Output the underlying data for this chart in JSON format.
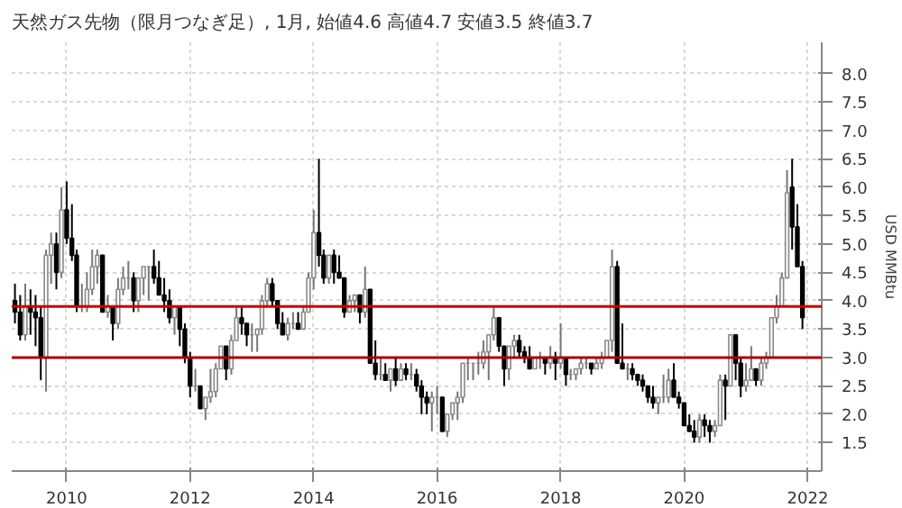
{
  "chart_data": {
    "type": "candlestick",
    "subtitle": "天然ガス先物（限月つなぎ足）, 1月, 始値4.6 高値4.7 安値3.5 終値3.7",
    "ylabel": "USD MMBtu",
    "x": [
      "2009-03",
      "2009-04",
      "2009-05",
      "2009-06",
      "2009-07",
      "2009-08",
      "2009-09",
      "2009-10",
      "2009-11",
      "2009-12",
      "2010-01",
      "2010-02",
      "2010-03",
      "2010-04",
      "2010-05",
      "2010-06",
      "2010-07",
      "2010-08",
      "2010-09",
      "2010-10",
      "2010-11",
      "2010-12",
      "2011-01",
      "2011-02",
      "2011-03",
      "2011-04",
      "2011-05",
      "2011-06",
      "2011-07",
      "2011-08",
      "2011-09",
      "2011-10",
      "2011-11",
      "2011-12",
      "2012-01",
      "2012-02",
      "2012-03",
      "2012-04",
      "2012-05",
      "2012-06",
      "2012-07",
      "2012-08",
      "2012-09",
      "2012-10",
      "2012-11",
      "2012-12",
      "2013-01",
      "2013-02",
      "2013-03",
      "2013-04",
      "2013-05",
      "2013-06",
      "2013-07",
      "2013-08",
      "2013-09",
      "2013-10",
      "2013-11",
      "2013-12",
      "2014-01",
      "2014-02",
      "2014-03",
      "2014-04",
      "2014-05",
      "2014-06",
      "2014-07",
      "2014-08",
      "2014-09",
      "2014-10",
      "2014-11",
      "2014-12",
      "2015-01",
      "2015-02",
      "2015-03",
      "2015-04",
      "2015-05",
      "2015-06",
      "2015-07",
      "2015-08",
      "2015-09",
      "2015-10",
      "2015-11",
      "2015-12",
      "2016-01",
      "2016-02",
      "2016-03",
      "2016-04",
      "2016-05",
      "2016-06",
      "2016-07",
      "2016-08",
      "2016-09",
      "2016-10",
      "2016-11",
      "2016-12",
      "2017-01",
      "2017-02",
      "2017-03",
      "2017-04",
      "2017-05",
      "2017-06",
      "2017-07",
      "2017-08",
      "2017-09",
      "2017-10",
      "2017-11",
      "2017-12",
      "2018-01",
      "2018-02",
      "2018-03",
      "2018-04",
      "2018-05",
      "2018-06",
      "2018-07",
      "2018-08",
      "2018-09",
      "2018-10",
      "2018-11",
      "2018-12",
      "2019-01",
      "2019-02",
      "2019-03",
      "2019-04",
      "2019-05",
      "2019-06",
      "2019-07",
      "2019-08",
      "2019-09",
      "2019-10",
      "2019-11",
      "2019-12",
      "2020-01",
      "2020-02",
      "2020-03",
      "2020-04",
      "2020-05",
      "2020-06",
      "2020-07",
      "2020-08",
      "2020-09",
      "2020-10",
      "2020-11",
      "2020-12",
      "2021-01",
      "2021-02",
      "2021-03",
      "2021-04",
      "2021-05",
      "2021-06",
      "2021-07",
      "2021-08",
      "2021-09",
      "2021-10",
      "2021-11",
      "2021-12"
    ],
    "ohlc": [
      [
        4.0,
        4.3,
        3.6,
        3.8
      ],
      [
        3.8,
        4.1,
        3.3,
        3.4
      ],
      [
        3.4,
        4.3,
        3.3,
        3.9
      ],
      [
        3.9,
        4.2,
        3.4,
        3.8
      ],
      [
        3.8,
        4.1,
        3.2,
        3.7
      ],
      [
        3.7,
        3.9,
        2.6,
        3.0
      ],
      [
        3.0,
        4.9,
        2.4,
        4.8
      ],
      [
        4.8,
        5.2,
        4.3,
        5.0
      ],
      [
        5.0,
        5.2,
        4.2,
        4.5
      ],
      [
        4.5,
        6.0,
        4.4,
        5.6
      ],
      [
        5.6,
        6.1,
        5.0,
        5.1
      ],
      [
        5.1,
        5.7,
        4.7,
        4.8
      ],
      [
        4.8,
        4.9,
        3.8,
        3.9
      ],
      [
        3.9,
        4.3,
        3.8,
        3.9
      ],
      [
        3.9,
        4.5,
        3.8,
        4.2
      ],
      [
        4.2,
        4.9,
        4.1,
        4.6
      ],
      [
        4.6,
        4.9,
        4.3,
        4.8
      ],
      [
        4.8,
        4.8,
        3.8,
        3.8
      ],
      [
        3.8,
        4.1,
        3.7,
        3.9
      ],
      [
        3.9,
        3.9,
        3.3,
        3.6
      ],
      [
        3.6,
        4.4,
        3.5,
        4.2
      ],
      [
        4.2,
        4.6,
        4.1,
        4.4
      ],
      [
        4.4,
        4.7,
        4.2,
        4.4
      ],
      [
        4.4,
        4.5,
        3.8,
        4.0
      ],
      [
        4.0,
        4.4,
        3.8,
        4.4
      ],
      [
        4.4,
        4.6,
        4.1,
        4.6
      ],
      [
        4.6,
        4.6,
        4.0,
        4.6
      ],
      [
        4.6,
        4.9,
        4.3,
        4.4
      ],
      [
        4.4,
        4.7,
        4.1,
        4.1
      ],
      [
        4.1,
        4.4,
        3.8,
        4.0
      ],
      [
        4.0,
        4.2,
        3.6,
        3.7
      ],
      [
        3.7,
        3.9,
        3.4,
        3.9
      ],
      [
        3.9,
        3.9,
        3.2,
        3.5
      ],
      [
        3.5,
        3.6,
        2.9,
        3.0
      ],
      [
        3.0,
        3.1,
        2.3,
        2.5
      ],
      [
        2.5,
        2.8,
        2.4,
        2.5
      ],
      [
        2.5,
        2.5,
        2.1,
        2.1
      ],
      [
        2.1,
        2.3,
        1.9,
        2.3
      ],
      [
        2.3,
        2.8,
        2.2,
        2.4
      ],
      [
        2.4,
        2.9,
        2.3,
        2.8
      ],
      [
        2.8,
        3.2,
        2.8,
        3.2
      ],
      [
        3.2,
        3.2,
        2.6,
        2.8
      ],
      [
        2.8,
        3.4,
        2.7,
        3.3
      ],
      [
        3.3,
        3.9,
        3.3,
        3.7
      ],
      [
        3.7,
        3.9,
        3.4,
        3.6
      ],
      [
        3.6,
        3.6,
        3.2,
        3.4
      ],
      [
        3.4,
        3.6,
        3.1,
        3.4
      ],
      [
        3.4,
        3.5,
        3.1,
        3.5
      ],
      [
        3.5,
        4.1,
        3.4,
        4.0
      ],
      [
        4.0,
        4.4,
        3.9,
        4.3
      ],
      [
        4.3,
        4.4,
        3.9,
        4.0
      ],
      [
        4.0,
        4.0,
        3.5,
        3.6
      ],
      [
        3.6,
        3.8,
        3.4,
        3.4
      ],
      [
        3.4,
        3.7,
        3.3,
        3.6
      ],
      [
        3.6,
        3.8,
        3.5,
        3.6
      ],
      [
        3.6,
        3.8,
        3.5,
        3.5
      ],
      [
        3.5,
        3.9,
        3.5,
        3.8
      ],
      [
        3.8,
        4.5,
        3.8,
        4.4
      ],
      [
        4.4,
        5.6,
        4.2,
        5.2
      ],
      [
        5.2,
        6.5,
        4.6,
        4.8
      ],
      [
        4.8,
        4.9,
        4.3,
        4.4
      ],
      [
        4.4,
        4.8,
        4.3,
        4.8
      ],
      [
        4.8,
        4.9,
        4.3,
        4.5
      ],
      [
        4.5,
        4.8,
        4.4,
        4.4
      ],
      [
        4.4,
        4.4,
        3.7,
        3.8
      ],
      [
        3.8,
        4.1,
        3.8,
        4.0
      ],
      [
        4.0,
        4.1,
        3.8,
        4.1
      ],
      [
        4.1,
        4.1,
        3.6,
        3.8
      ],
      [
        3.8,
        4.6,
        3.7,
        4.2
      ],
      [
        4.2,
        4.2,
        2.9,
        2.9
      ],
      [
        2.9,
        3.3,
        2.6,
        2.7
      ],
      [
        2.7,
        3.0,
        2.6,
        2.7
      ],
      [
        2.7,
        2.9,
        2.6,
        2.6
      ],
      [
        2.6,
        2.8,
        2.4,
        2.8
      ],
      [
        2.8,
        3.0,
        2.5,
        2.6
      ],
      [
        2.6,
        2.9,
        2.6,
        2.8
      ],
      [
        2.8,
        2.9,
        2.6,
        2.7
      ],
      [
        2.7,
        2.9,
        2.6,
        2.7
      ],
      [
        2.7,
        2.8,
        2.4,
        2.5
      ],
      [
        2.5,
        2.6,
        2.0,
        2.3
      ],
      [
        2.3,
        2.4,
        2.0,
        2.2
      ],
      [
        2.2,
        2.4,
        1.7,
        2.3
      ],
      [
        2.3,
        2.5,
        2.0,
        2.3
      ],
      [
        2.3,
        2.3,
        1.7,
        1.7
      ],
      [
        1.7,
        2.0,
        1.6,
        2.0
      ],
      [
        2.0,
        2.2,
        1.9,
        2.2
      ],
      [
        2.2,
        2.4,
        1.9,
        2.3
      ],
      [
        2.3,
        2.9,
        2.2,
        2.9
      ],
      [
        2.9,
        3.0,
        2.6,
        2.9
      ],
      [
        2.9,
        2.9,
        2.6,
        2.9
      ],
      [
        2.9,
        3.1,
        2.7,
        2.9
      ],
      [
        2.9,
        3.3,
        2.8,
        3.1
      ],
      [
        3.1,
        3.4,
        2.6,
        3.4
      ],
      [
        3.4,
        3.9,
        3.3,
        3.7
      ],
      [
        3.7,
        3.7,
        3.1,
        3.2
      ],
      [
        3.2,
        3.2,
        2.5,
        2.8
      ],
      [
        2.8,
        3.2,
        2.6,
        3.2
      ],
      [
        3.2,
        3.4,
        3.0,
        3.3
      ],
      [
        3.3,
        3.4,
        3.0,
        3.1
      ],
      [
        3.1,
        3.2,
        2.9,
        3.0
      ],
      [
        3.0,
        3.2,
        2.8,
        2.8
      ],
      [
        2.8,
        3.0,
        2.8,
        3.0
      ],
      [
        3.0,
        3.1,
        2.8,
        3.0
      ],
      [
        3.0,
        3.0,
        2.7,
        2.9
      ],
      [
        2.9,
        3.2,
        2.8,
        3.0
      ],
      [
        3.0,
        3.1,
        2.6,
        2.9
      ],
      [
        2.9,
        3.6,
        2.8,
        3.0
      ],
      [
        3.0,
        3.0,
        2.5,
        2.7
      ],
      [
        2.7,
        2.8,
        2.6,
        2.7
      ],
      [
        2.7,
        2.8,
        2.6,
        2.8
      ],
      [
        2.8,
        3.0,
        2.7,
        2.9
      ],
      [
        2.9,
        3.0,
        2.8,
        2.9
      ],
      [
        2.9,
        2.9,
        2.7,
        2.8
      ],
      [
        2.8,
        3.0,
        2.8,
        2.9
      ],
      [
        2.9,
        3.1,
        2.8,
        3.0
      ],
      [
        3.0,
        3.3,
        3.0,
        3.3
      ],
      [
        3.3,
        4.9,
        3.1,
        4.6
      ],
      [
        4.6,
        4.7,
        2.9,
        2.9
      ],
      [
        2.9,
        3.6,
        2.8,
        2.8
      ],
      [
        2.8,
        2.9,
        2.6,
        2.8
      ],
      [
        2.8,
        2.9,
        2.6,
        2.7
      ],
      [
        2.7,
        2.7,
        2.5,
        2.6
      ],
      [
        2.6,
        2.7,
        2.4,
        2.5
      ],
      [
        2.5,
        2.5,
        2.2,
        2.3
      ],
      [
        2.3,
        2.5,
        2.1,
        2.2
      ],
      [
        2.2,
        2.3,
        2.0,
        2.3
      ],
      [
        2.3,
        2.7,
        2.2,
        2.3
      ],
      [
        2.3,
        2.8,
        2.2,
        2.6
      ],
      [
        2.6,
        2.9,
        2.3,
        2.3
      ],
      [
        2.3,
        2.4,
        2.1,
        2.2
      ],
      [
        2.2,
        2.2,
        1.8,
        1.8
      ],
      [
        1.8,
        2.0,
        1.7,
        1.7
      ],
      [
        1.7,
        1.9,
        1.5,
        1.6
      ],
      [
        1.6,
        2.0,
        1.5,
        1.9
      ],
      [
        1.9,
        2.0,
        1.6,
        1.8
      ],
      [
        1.8,
        1.9,
        1.5,
        1.7
      ],
      [
        1.7,
        1.9,
        1.6,
        1.8
      ],
      [
        1.8,
        2.7,
        1.8,
        2.6
      ],
      [
        2.6,
        2.7,
        1.9,
        2.5
      ],
      [
        2.5,
        3.4,
        2.5,
        3.4
      ],
      [
        3.4,
        3.4,
        2.6,
        2.9
      ],
      [
        2.9,
        3.0,
        2.3,
        2.5
      ],
      [
        2.5,
        2.9,
        2.4,
        2.6
      ],
      [
        2.6,
        3.2,
        2.6,
        2.8
      ],
      [
        2.8,
        2.8,
        2.5,
        2.6
      ],
      [
        2.6,
        3.0,
        2.5,
        2.9
      ],
      [
        2.9,
        3.1,
        2.8,
        3.0
      ],
      [
        3.0,
        3.7,
        3.0,
        3.7
      ],
      [
        3.7,
        4.1,
        3.6,
        3.9
      ],
      [
        3.9,
        4.5,
        3.9,
        4.4
      ],
      [
        4.4,
        6.3,
        4.4,
        5.9
      ],
      [
        6.0,
        6.5,
        4.9,
        5.3
      ],
      [
        5.3,
        5.7,
        4.6,
        4.6
      ],
      [
        4.6,
        4.7,
        3.5,
        3.7
      ]
    ],
    "xlim": [
      "2009-02-10",
      "2022-03-25"
    ],
    "xticks": [
      "2010",
      "2012",
      "2014",
      "2016",
      "2018",
      "2020",
      "2022"
    ],
    "ylim": [
      1.0,
      8.55
    ],
    "yticks": [
      1.5,
      {
        "value": 2,
        "label": "2.0"
      },
      2.5,
      {
        "value": 3,
        "label": "3.0"
      },
      3.5,
      {
        "value": 4,
        "label": "4.0"
      },
      4.5,
      {
        "value": 5,
        "label": "5.0"
      },
      5.5,
      {
        "value": 6,
        "label": "6.0"
      },
      6.5,
      {
        "value": 7,
        "label": "7.0"
      },
      7.5,
      {
        "value": 8,
        "label": "8.0"
      }
    ],
    "ref_lines": [
      {
        "axis": "y",
        "value": 3.9,
        "color": "#cc0000"
      },
      {
        "axis": "y",
        "value": 3.0,
        "color": "#b00000"
      }
    ],
    "grid": true
  }
}
